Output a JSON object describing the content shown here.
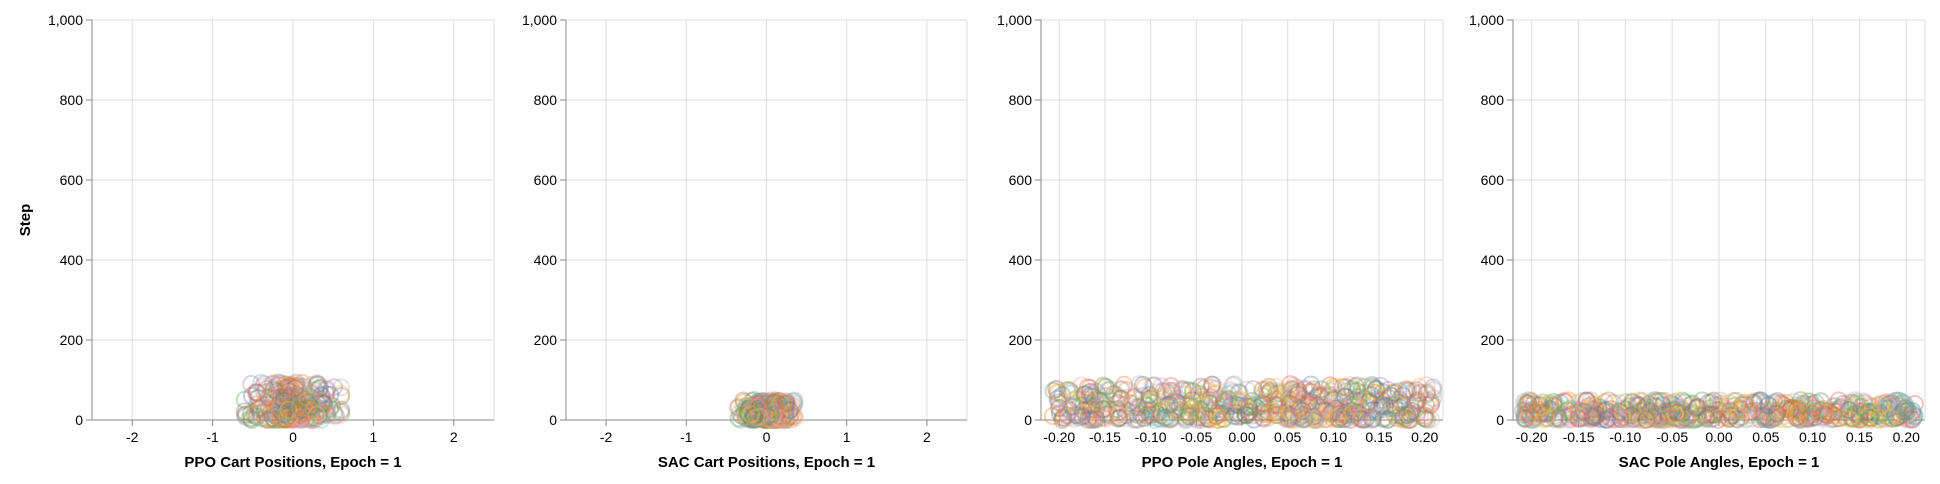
{
  "chart_data": [
    {
      "type": "scatter",
      "xlabel": "PPO Cart Positions, Epoch = 1",
      "ylabel": "Step",
      "xlim": [
        -2.5,
        2.5
      ],
      "ylim": [
        0,
        1000
      ],
      "x_ticks": [
        "-2",
        "-1",
        "0",
        "1",
        "2"
      ],
      "y_ticks": [
        "0",
        "200",
        "400",
        "600",
        "800",
        "1,000"
      ],
      "grid": true,
      "marker": "open-circle",
      "point_cloud": {
        "x_range": [
          -0.6,
          0.6
        ],
        "y_range": [
          0,
          95
        ]
      }
    },
    {
      "type": "scatter",
      "xlabel": "SAC Cart Positions, Epoch = 1",
      "ylabel": "",
      "xlim": [
        -2.5,
        2.5
      ],
      "ylim": [
        0,
        1000
      ],
      "x_ticks": [
        "-2",
        "-1",
        "0",
        "1",
        "2"
      ],
      "y_ticks": [
        "0",
        "200",
        "400",
        "600",
        "800",
        "1,000"
      ],
      "grid": true,
      "marker": "open-circle",
      "point_cloud": {
        "x_range": [
          -0.35,
          0.35
        ],
        "y_range": [
          0,
          50
        ]
      }
    },
    {
      "type": "scatter",
      "xlabel": "PPO Pole Angles, Epoch = 1",
      "ylabel": "",
      "xlim": [
        -0.22,
        0.22
      ],
      "ylim": [
        0,
        1000
      ],
      "x_ticks": [
        "-0.20",
        "-0.15",
        "-0.10",
        "-0.05",
        "0.00",
        "0.05",
        "0.10",
        "0.15",
        "0.20"
      ],
      "y_ticks": [
        "0",
        "200",
        "400",
        "600",
        "800",
        "1,000"
      ],
      "grid": true,
      "marker": "open-circle",
      "point_cloud": {
        "x_range": [
          -0.21,
          0.21
        ],
        "y_range": [
          0,
          90
        ]
      }
    },
    {
      "type": "scatter",
      "xlabel": "SAC Pole Angles, Epoch = 1",
      "ylabel": "",
      "xlim": [
        -0.22,
        0.22
      ],
      "ylim": [
        0,
        1000
      ],
      "x_ticks": [
        "-0.20",
        "-0.15",
        "-0.10",
        "-0.05",
        "0.00",
        "0.05",
        "0.10",
        "0.15",
        "0.20"
      ],
      "y_ticks": [
        "0",
        "200",
        "400",
        "600",
        "800",
        "1,000"
      ],
      "grid": true,
      "marker": "open-circle",
      "point_cloud": {
        "x_range": [
          -0.21,
          0.21
        ],
        "y_range": [
          0,
          50
        ]
      }
    }
  ],
  "colors": {
    "grid": "#dddddd",
    "axis": "#888888",
    "palette": [
      "#4c78a8",
      "#f58518",
      "#e45756",
      "#72b7b2",
      "#54a24b",
      "#eeca3b",
      "#b279a2",
      "#ff9da6",
      "#9d755d",
      "#bab0ac"
    ]
  }
}
